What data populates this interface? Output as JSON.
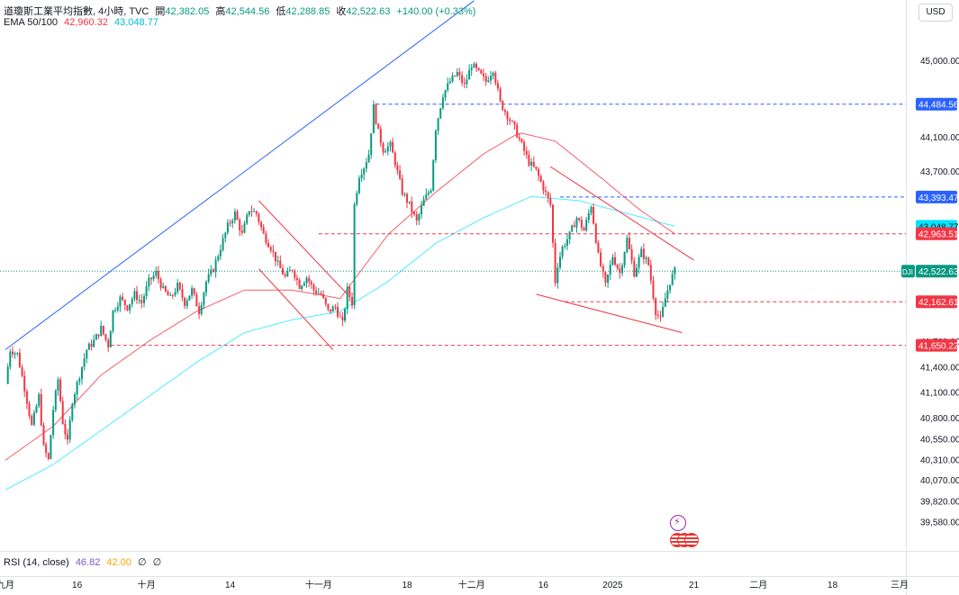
{
  "legend": {
    "symbol": "道瓊斯工業平均指數, 4小時, TVC",
    "open_label": "開",
    "open": "42,382.05",
    "high_label": "高",
    "high": "42,544.56",
    "low_label": "低",
    "low": "42,288.85",
    "close_label": "收",
    "close": "42,522.63",
    "change": "+140.00 (+0.33%)",
    "ema_label": "EMA 50/100",
    "ema50": "42,960.32",
    "ema100": "43,048.77",
    "rsi_label": "RSI (14, close)",
    "rsi_value": "46.82",
    "rsi_ma": "42.00",
    "rsi_extra1": "∅",
    "rsi_extra2": "∅"
  },
  "currency": "USD",
  "colors": {
    "up": "#089981",
    "down": "#f23645",
    "ema50": "#f23645",
    "ema100": "#00e5ff",
    "trendline_blue": "#2962ff",
    "channel_red": "#f23645",
    "level_blue": "#2962ff",
    "level_red": "#f23645",
    "axis_text": "#131722"
  },
  "icons": {
    "lightning": "lightning-icon",
    "events": "flag-events-icon"
  },
  "chart_data": {
    "type": "candlestick",
    "title": "道瓊斯工業平均指數, 4小時, TVC",
    "ylim": [
      39400,
      45900
    ],
    "y_ticks": [
      45000,
      44100,
      43700,
      41700,
      41400,
      41100,
      40800,
      40550,
      40310,
      40070,
      39820,
      39580
    ],
    "y_tick_labels": [
      "45,000.00",
      "44,100.00",
      "43,700.00",
      "41,700.00",
      "41,400.00",
      "41,100.00",
      "40,800.00",
      "40,550.00",
      "40,310.00",
      "40,070.00",
      "39,820.00",
      "39,580.00"
    ],
    "x_labels": [
      {
        "label": "九月",
        "index": 0
      },
      {
        "label": "16",
        "index": 30
      },
      {
        "label": "十月",
        "index": 59
      },
      {
        "label": "14",
        "index": 94
      },
      {
        "label": "十一月",
        "index": 131
      },
      {
        "label": "18",
        "index": 168
      },
      {
        "label": "十二月",
        "index": 195
      },
      {
        "label": "16",
        "index": 225
      },
      {
        "label": "2025",
        "index": 254
      },
      {
        "label": "21",
        "index": 288
      },
      {
        "label": "二月",
        "index": 315
      },
      {
        "label": "18",
        "index": 346
      },
      {
        "label": "三月",
        "index": 374
      }
    ],
    "anchors": [
      [
        0,
        41200
      ],
      [
        2,
        41600
      ],
      [
        5,
        41550
      ],
      [
        8,
        41150
      ],
      [
        11,
        40700
      ],
      [
        14,
        41050
      ],
      [
        16,
        40450
      ],
      [
        18,
        40300
      ],
      [
        20,
        40900
      ],
      [
        22,
        41250
      ],
      [
        24,
        40750
      ],
      [
        26,
        40500
      ],
      [
        28,
        41000
      ],
      [
        31,
        41300
      ],
      [
        34,
        41600
      ],
      [
        37,
        41700
      ],
      [
        40,
        41850
      ],
      [
        43,
        41650
      ],
      [
        45,
        42050
      ],
      [
        48,
        42200
      ],
      [
        51,
        42100
      ],
      [
        54,
        42250
      ],
      [
        57,
        42150
      ],
      [
        60,
        42400
      ],
      [
        63,
        42500
      ],
      [
        66,
        42300
      ],
      [
        69,
        42200
      ],
      [
        72,
        42350
      ],
      [
        75,
        42150
      ],
      [
        78,
        42300
      ],
      [
        81,
        42050
      ],
      [
        84,
        42400
      ],
      [
        87,
        42550
      ],
      [
        90,
        42800
      ],
      [
        93,
        43050
      ],
      [
        96,
        43200
      ],
      [
        99,
        42950
      ],
      [
        102,
        43250
      ],
      [
        105,
        43200
      ],
      [
        108,
        42950
      ],
      [
        111,
        42800
      ],
      [
        114,
        42600
      ],
      [
        117,
        42450
      ],
      [
        120,
        42550
      ],
      [
        123,
        42350
      ],
      [
        126,
        42450
      ],
      [
        129,
        42300
      ],
      [
        132,
        42250
      ],
      [
        135,
        42050
      ],
      [
        138,
        42100
      ],
      [
        141,
        41900
      ],
      [
        143,
        42300
      ],
      [
        145,
        42150
      ],
      [
        146,
        43300
      ],
      [
        148,
        43650
      ],
      [
        150,
        43750
      ],
      [
        152,
        43900
      ],
      [
        154,
        44450
      ],
      [
        156,
        44150
      ],
      [
        158,
        43950
      ],
      [
        161,
        44000
      ],
      [
        163,
        43800
      ],
      [
        166,
        43450
      ],
      [
        169,
        43300
      ],
      [
        172,
        43100
      ],
      [
        175,
        43350
      ],
      [
        178,
        43500
      ],
      [
        180,
        44200
      ],
      [
        183,
        44600
      ],
      [
        186,
        44750
      ],
      [
        189,
        44850
      ],
      [
        192,
        44700
      ],
      [
        195,
        44950
      ],
      [
        198,
        44850
      ],
      [
        201,
        44750
      ],
      [
        204,
        44900
      ],
      [
        207,
        44500
      ],
      [
        210,
        44350
      ],
      [
        213,
        44200
      ],
      [
        216,
        44000
      ],
      [
        219,
        43800
      ],
      [
        222,
        43700
      ],
      [
        225,
        43500
      ],
      [
        228,
        43300
      ],
      [
        230,
        42400
      ],
      [
        231,
        42600
      ],
      [
        233,
        42800
      ],
      [
        236,
        42950
      ],
      [
        239,
        43150
      ],
      [
        242,
        43000
      ],
      [
        245,
        43300
      ],
      [
        248,
        42700
      ],
      [
        251,
        42350
      ],
      [
        254,
        42700
      ],
      [
        257,
        42500
      ],
      [
        260,
        42900
      ],
      [
        263,
        42500
      ],
      [
        266,
        42750
      ],
      [
        269,
        42600
      ],
      [
        272,
        42050
      ],
      [
        274,
        41950
      ],
      [
        276,
        42200
      ],
      [
        278,
        42400
      ],
      [
        280,
        42522.63
      ]
    ],
    "ema50_line": [
      [
        0,
        40300
      ],
      [
        20,
        40700
      ],
      [
        40,
        41300
      ],
      [
        60,
        41700
      ],
      [
        80,
        42050
      ],
      [
        100,
        42300
      ],
      [
        120,
        42300
      ],
      [
        140,
        42200
      ],
      [
        160,
        42950
      ],
      [
        180,
        43450
      ],
      [
        200,
        43900
      ],
      [
        215,
        44150
      ],
      [
        230,
        44050
      ],
      [
        250,
        43600
      ],
      [
        265,
        43250
      ],
      [
        280,
        42960.32
      ]
    ],
    "ema100_line": [
      [
        0,
        39950
      ],
      [
        20,
        40250
      ],
      [
        40,
        40650
      ],
      [
        60,
        41050
      ],
      [
        80,
        41450
      ],
      [
        100,
        41800
      ],
      [
        120,
        41950
      ],
      [
        140,
        42050
      ],
      [
        160,
        42400
      ],
      [
        180,
        42850
      ],
      [
        200,
        43150
      ],
      [
        220,
        43400
      ],
      [
        240,
        43350
      ],
      [
        260,
        43200
      ],
      [
        280,
        43048.77
      ]
    ],
    "trendlines": [
      {
        "name": "ascending-support",
        "color": "blue",
        "from": [
          0,
          41600
        ],
        "to": [
          196,
          45700
        ]
      },
      {
        "name": "falling-channel-upper",
        "color": "red",
        "from": [
          106,
          43350
        ],
        "to": [
          143,
          42250
        ]
      },
      {
        "name": "falling-channel-lower",
        "color": "red",
        "from": [
          106,
          42550
        ],
        "to": [
          137,
          41600
        ]
      },
      {
        "name": "wedge-upper",
        "color": "red",
        "from": [
          228,
          43750
        ],
        "to": [
          288,
          42650
        ]
      },
      {
        "name": "wedge-lower",
        "color": "red",
        "from": [
          222,
          42250
        ],
        "to": [
          283,
          41800
        ]
      }
    ],
    "levels": [
      {
        "value": 44484.56,
        "label": "44,484.56",
        "color": "blue",
        "from_index": 155
      },
      {
        "value": 43393.47,
        "label": "43,393.47",
        "color": "blue",
        "from_index": 232
      },
      {
        "value": 42960.32,
        "label": "42,960.32",
        "color": "red",
        "from_index": 131
      },
      {
        "value": 42162.61,
        "label": "42,162.61",
        "color": "red",
        "from_index": 234
      },
      {
        "value": 41650.22,
        "label": "41,650.22",
        "color": "red",
        "from_index": 44
      }
    ],
    "price_tags": [
      {
        "value": 43048.77,
        "label": "43,048.77",
        "color": "cyan"
      },
      {
        "value": 42963.51,
        "label": "42,963.51",
        "color": "red"
      },
      {
        "value": 42522.63,
        "label": "42,522.63",
        "color": "green",
        "symbol": "DJI"
      }
    ]
  }
}
